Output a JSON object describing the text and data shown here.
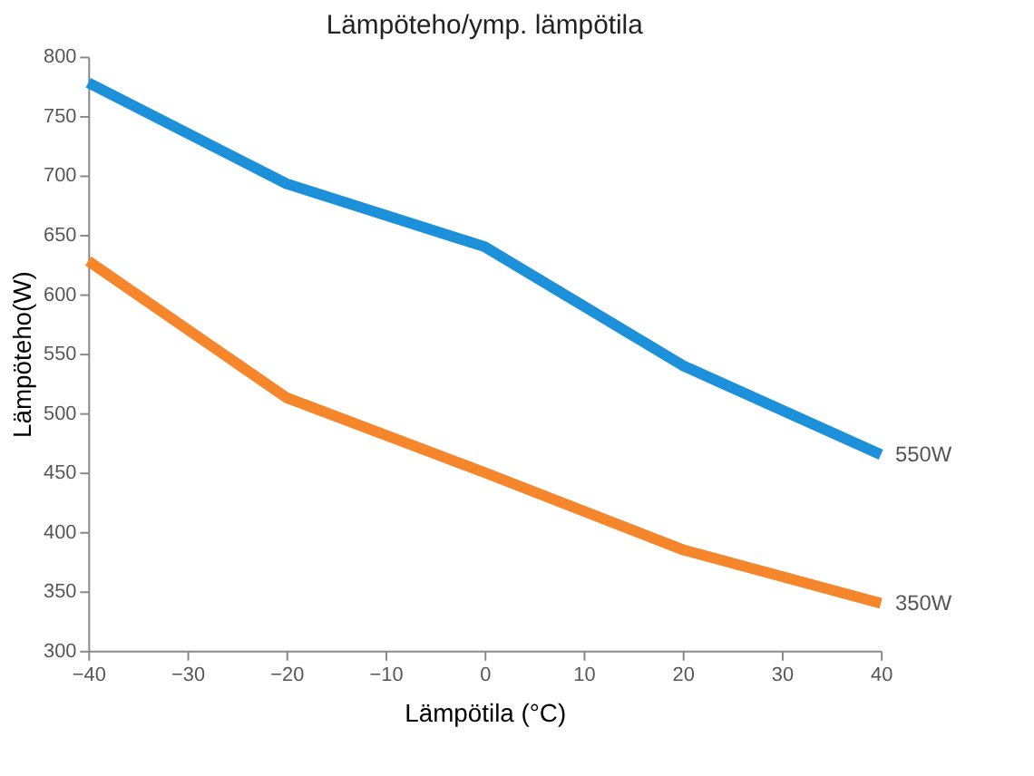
{
  "chart_data": {
    "type": "line",
    "title": "Lämpöteho/ymp. lämpötila",
    "xlabel": "Lämpötila (°C)",
    "ylabel": "Lämpöteho(W)",
    "x": [
      -40,
      -20,
      0,
      20,
      40
    ],
    "series": [
      {
        "name": "550W",
        "color": "#1c90d8",
        "values": [
          778,
          693,
          640,
          540,
          465
        ]
      },
      {
        "name": "350W",
        "color": "#f5862c",
        "values": [
          628,
          513,
          450,
          385,
          340
        ]
      }
    ],
    "xlim": [
      -40,
      40
    ],
    "xticks": [
      -40,
      -30,
      -20,
      -10,
      0,
      10,
      20,
      30,
      40
    ],
    "ylim": [
      300,
      800
    ],
    "yticks": [
      300,
      350,
      400,
      450,
      500,
      550,
      600,
      650,
      700,
      750,
      800
    ],
    "grid": false,
    "legend": false,
    "marker": "none",
    "line_style": "solid"
  }
}
